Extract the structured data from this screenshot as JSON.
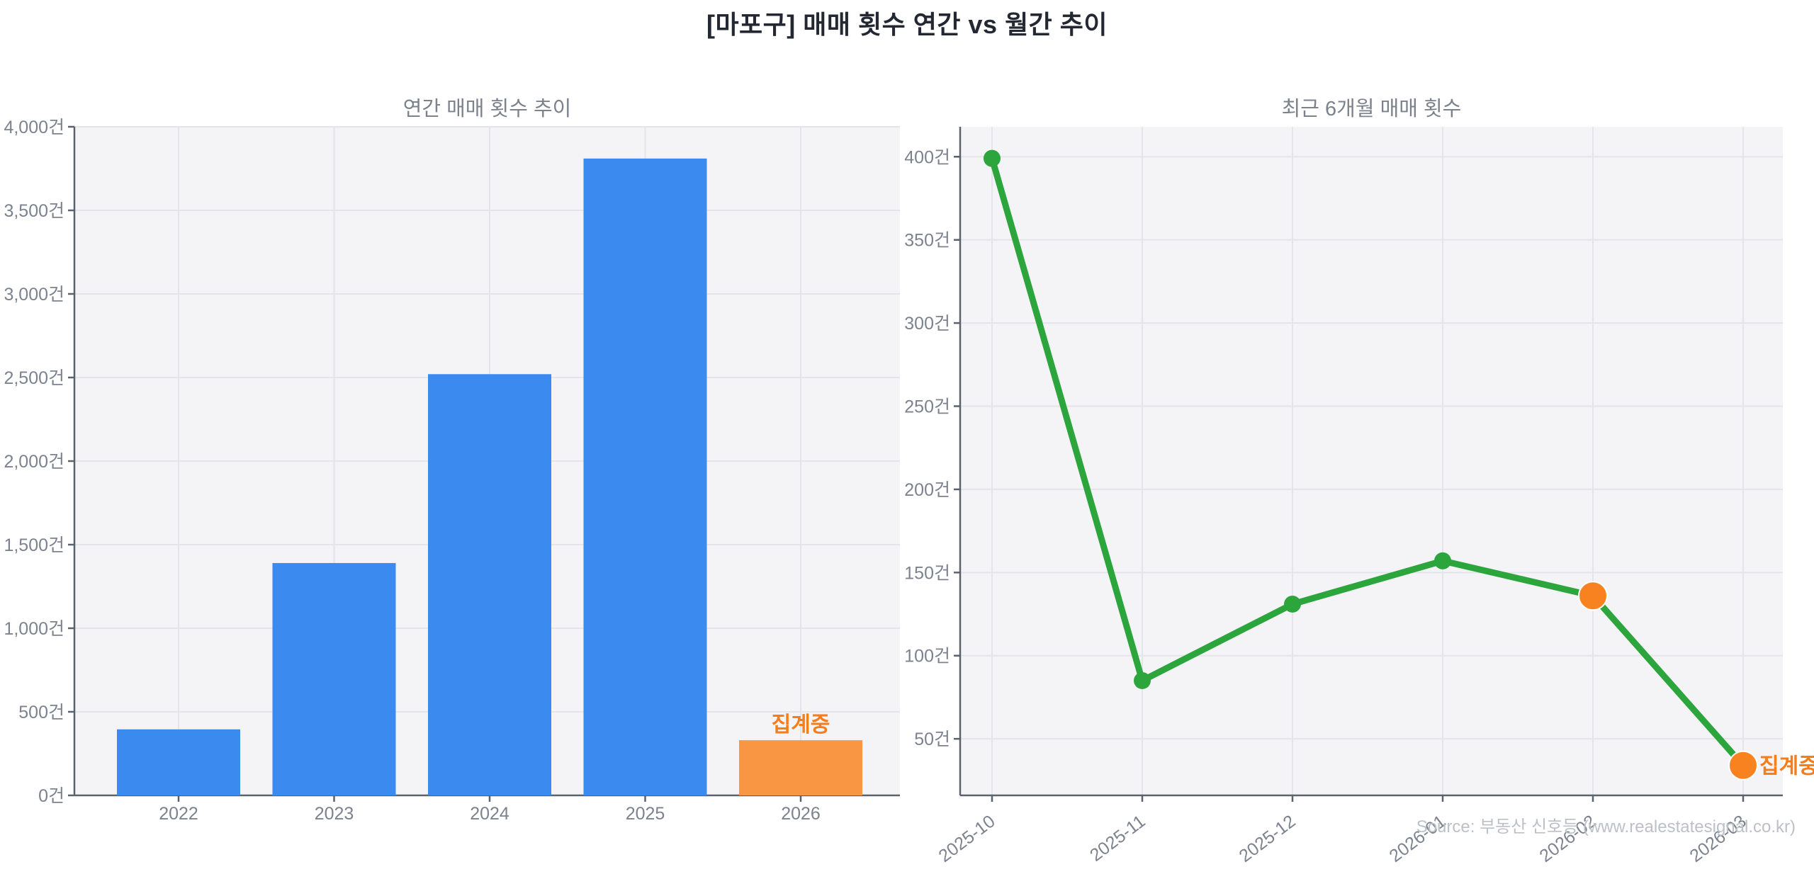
{
  "page": {
    "title": "[마포구] 매매 횟수 연간 vs 월간 추이"
  },
  "watermark": "Source: 부동산 신호등 (www.realestatesignal.co.kr)",
  "colors": {
    "blue": "#3a8af0",
    "orange_bar": "#f89643",
    "orange": "#f8821f",
    "orange_text": "#f57d1a",
    "green": "#2ca63c",
    "axis": "#5a626e",
    "tick_label": "#7c838e",
    "chart_title": "#7b828c",
    "plot_bg": "#f4f4f6",
    "grid": "#e4e5e9",
    "watermark": "#bcc1c8",
    "main_title": "#232832"
  },
  "chart_data": [
    {
      "type": "bar",
      "title": "연간 매매 횟수 추이",
      "unit": "건",
      "categories": [
        "2022",
        "2023",
        "2024",
        "2025",
        "2026"
      ],
      "values": [
        395,
        1390,
        2520,
        3810,
        330
      ],
      "bar_colors": [
        "blue",
        "blue",
        "blue",
        "blue",
        "orange_bar"
      ],
      "annotation": {
        "text": "집계중",
        "category": "2026"
      },
      "ylim": [
        0,
        4000
      ],
      "ytick_step": 500,
      "grid": true,
      "legend": null
    },
    {
      "type": "line",
      "title": "최근 6개월 매매 횟수",
      "unit": "건",
      "x": [
        "2025-10",
        "2025-11",
        "2025-12",
        "2026-01",
        "2026-02",
        "2026-03"
      ],
      "values": [
        399,
        85,
        131,
        157,
        136,
        34
      ],
      "point_colors": [
        "green",
        "green",
        "green",
        "green",
        "orange",
        "orange"
      ],
      "line_color": "green",
      "annotation": {
        "text": "집계중",
        "x": "2026-03"
      },
      "yticks": [
        50,
        100,
        150,
        200,
        250,
        300,
        350,
        400
      ],
      "ylim": [
        16,
        418
      ],
      "grid": true,
      "legend": null
    }
  ]
}
